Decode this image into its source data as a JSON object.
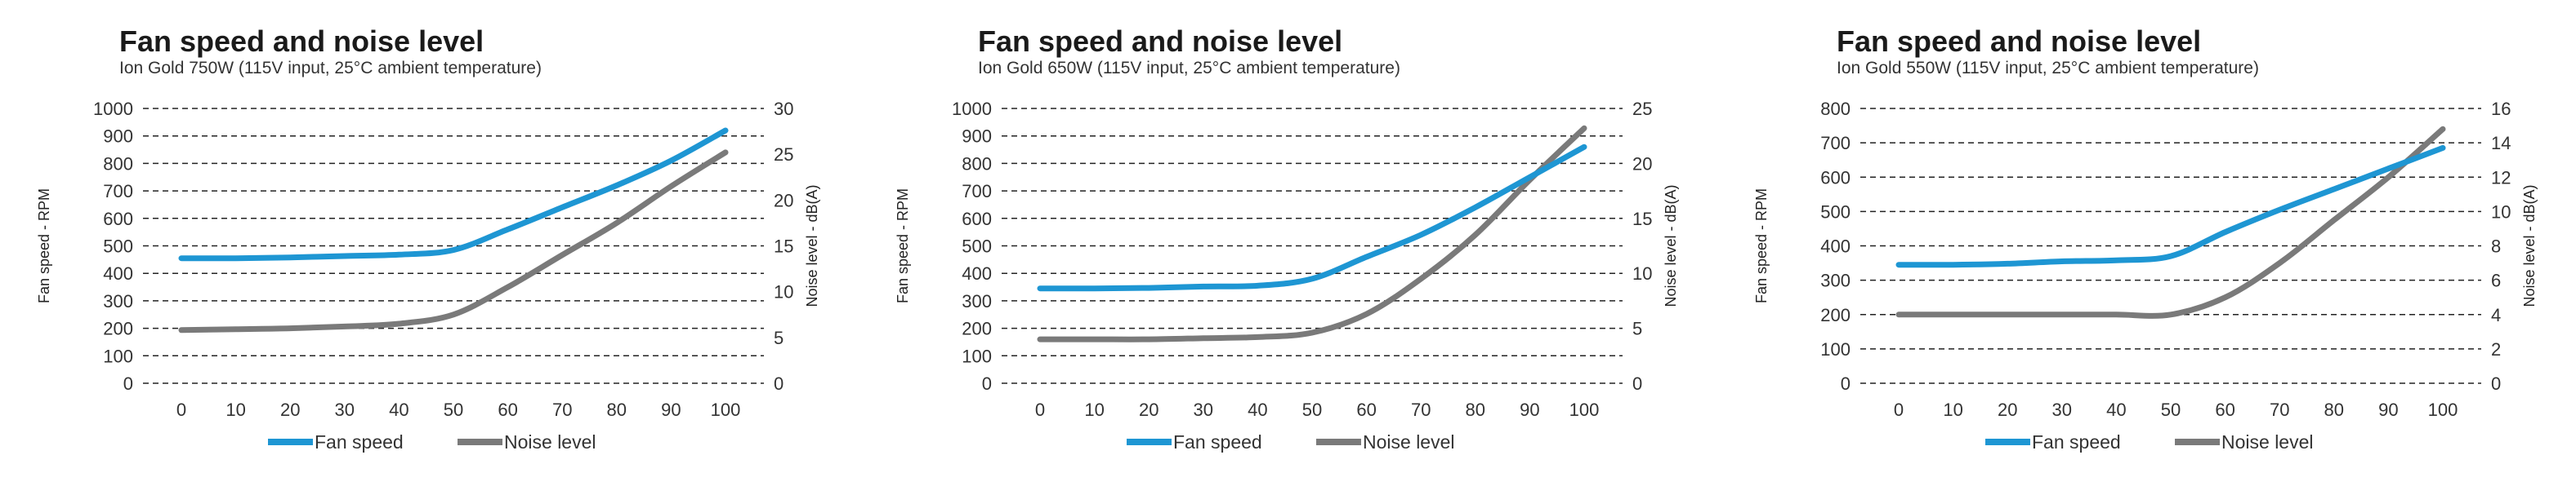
{
  "colors": {
    "fan": "#1e96d3",
    "noise": "#7a7a7a",
    "grid": "#222222"
  },
  "chart_data": [
    {
      "type": "line",
      "title": "Fan speed and noise level",
      "subtitle": "Ion Gold 750W (115V input, 25°C ambient temperature)",
      "ylabel": "Fan speed - RPM",
      "y2label": "Noise level - dB(A)",
      "x": [
        0,
        10,
        20,
        30,
        40,
        50,
        60,
        70,
        80,
        90,
        100
      ],
      "xticks": [
        "0",
        "10",
        "20",
        "30",
        "40",
        "50",
        "60",
        "70",
        "80",
        "90",
        "100"
      ],
      "ylim": [
        0,
        1000
      ],
      "yticks": [
        "0",
        "100",
        "200",
        "300",
        "400",
        "500",
        "600",
        "700",
        "800",
        "900",
        "1000"
      ],
      "y2lim": [
        0,
        30
      ],
      "y2ticks": [
        "0",
        "5",
        "10",
        "15",
        "20",
        "25",
        "30"
      ],
      "series": [
        {
          "name": "Fan speed",
          "axis": "left",
          "values": [
            455,
            455,
            458,
            463,
            468,
            485,
            560,
            640,
            720,
            810,
            920
          ]
        },
        {
          "name": "Noise level",
          "axis": "right",
          "values": [
            5.8,
            5.9,
            6.0,
            6.2,
            6.5,
            7.5,
            10.5,
            14.0,
            17.5,
            21.5,
            25.2
          ]
        }
      ],
      "grid": true,
      "legend": "bottom"
    },
    {
      "type": "line",
      "title": "Fan speed and noise level",
      "subtitle": "Ion Gold 650W (115V input, 25°C ambient temperature)",
      "ylabel": "Fan speed - RPM",
      "y2label": "Noise level - dB(A)",
      "x": [
        0,
        10,
        20,
        30,
        40,
        50,
        60,
        70,
        80,
        90,
        100
      ],
      "xticks": [
        "0",
        "10",
        "20",
        "30",
        "40",
        "50",
        "60",
        "70",
        "80",
        "90",
        "100"
      ],
      "ylim": [
        0,
        1000
      ],
      "yticks": [
        "0",
        "100",
        "200",
        "300",
        "400",
        "500",
        "600",
        "700",
        "800",
        "900",
        "1000"
      ],
      "y2lim": [
        0,
        25
      ],
      "y2ticks": [
        "0",
        "5",
        "10",
        "15",
        "20",
        "25"
      ],
      "series": [
        {
          "name": "Fan speed",
          "axis": "left",
          "values": [
            345,
            345,
            347,
            352,
            355,
            380,
            460,
            540,
            640,
            750,
            860
          ]
        },
        {
          "name": "Noise level",
          "axis": "right",
          "values": [
            4.0,
            4.0,
            4.0,
            4.1,
            4.2,
            4.6,
            6.3,
            9.5,
            13.5,
            18.5,
            23.2
          ]
        }
      ],
      "grid": true,
      "legend": "bottom"
    },
    {
      "type": "line",
      "title": "Fan speed and noise level",
      "subtitle": "Ion Gold 550W (115V input, 25°C ambient temperature)",
      "ylabel": "Fan speed - RPM",
      "y2label": "Noise level - dB(A)",
      "x": [
        0,
        10,
        20,
        30,
        40,
        50,
        60,
        70,
        80,
        90,
        100
      ],
      "xticks": [
        "0",
        "10",
        "20",
        "30",
        "40",
        "50",
        "60",
        "70",
        "80",
        "90",
        "100"
      ],
      "ylim": [
        0,
        800
      ],
      "yticks": [
        "0",
        "100",
        "200",
        "300",
        "400",
        "500",
        "600",
        "700",
        "800"
      ],
      "y2lim": [
        0,
        16
      ],
      "y2ticks": [
        "0",
        "2",
        "4",
        "6",
        "8",
        "10",
        "12",
        "14",
        "16"
      ],
      "series": [
        {
          "name": "Fan speed",
          "axis": "left",
          "values": [
            345,
            345,
            348,
            355,
            358,
            370,
            440,
            505,
            565,
            625,
            685
          ]
        },
        {
          "name": "Noise level",
          "axis": "right",
          "values": [
            4.0,
            4.0,
            4.0,
            4.0,
            4.0,
            4.0,
            5.0,
            7.0,
            9.5,
            12.0,
            14.8
          ]
        }
      ],
      "grid": true,
      "legend": "bottom"
    }
  ]
}
